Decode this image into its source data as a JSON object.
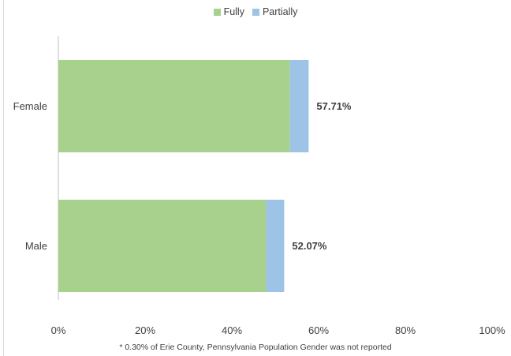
{
  "chart_data": {
    "type": "bar",
    "orientation": "horizontal",
    "stacked": true,
    "categories": [
      "Female",
      "Male"
    ],
    "series": [
      {
        "name": "Fully",
        "color": "#a9d18e",
        "values": [
          53.4,
          47.9
        ]
      },
      {
        "name": "Partially",
        "color": "#9dc3e6",
        "values": [
          4.31,
          4.17
        ]
      }
    ],
    "totals": [
      "57.71%",
      "52.07%"
    ],
    "xticks": [
      "0%",
      "20%",
      "40%",
      "60%",
      "80%",
      "100%"
    ],
    "xlim": [
      0,
      100
    ],
    "grid": false,
    "legend_position": "top",
    "footnote": "* 0.30% of Erie County, Pennsylvania Population Gender was not reported"
  }
}
